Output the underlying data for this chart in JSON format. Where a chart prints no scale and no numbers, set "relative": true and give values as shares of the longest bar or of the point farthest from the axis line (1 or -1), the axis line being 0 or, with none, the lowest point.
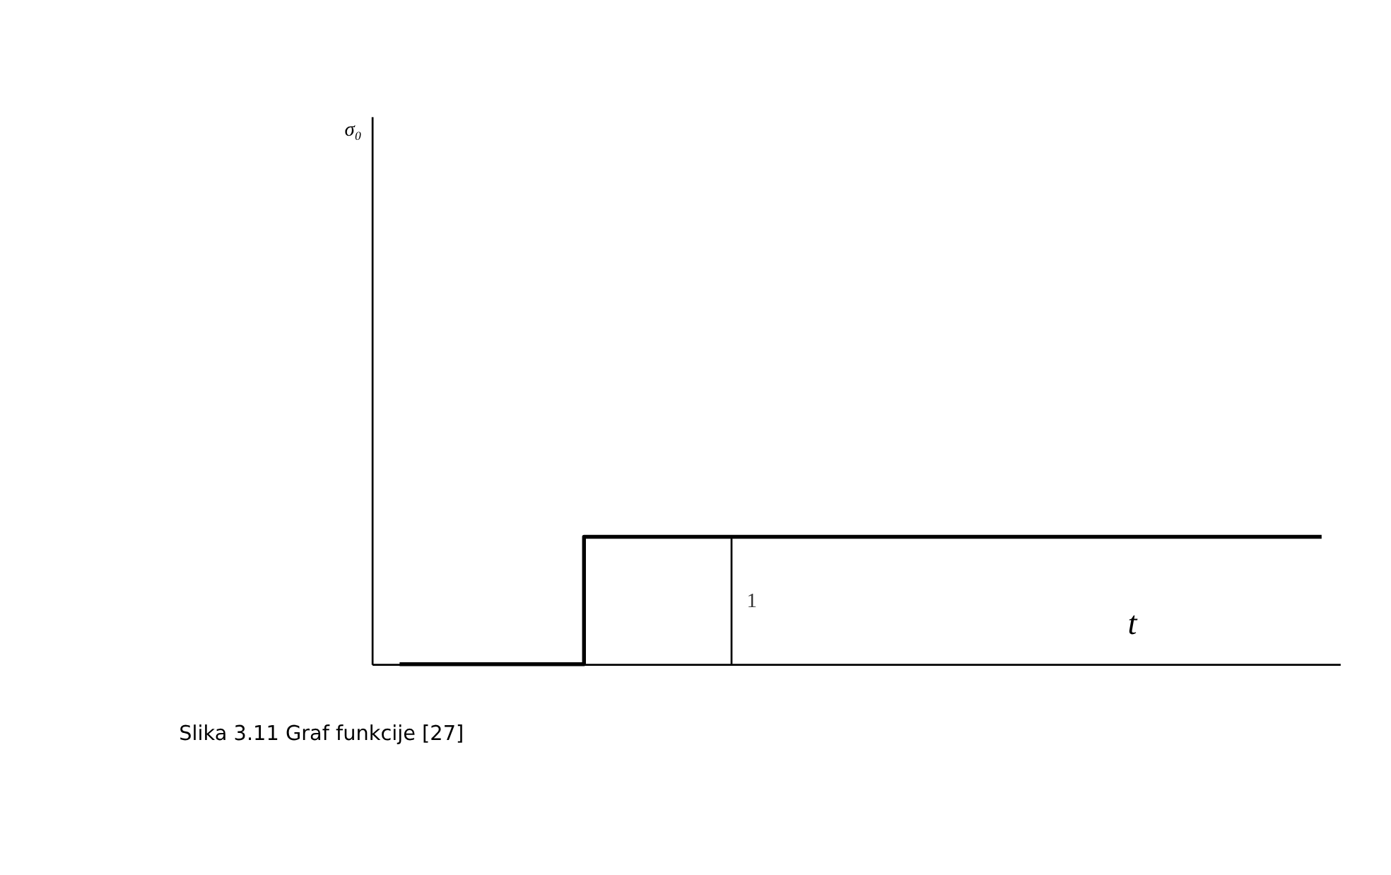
{
  "chart_data": {
    "type": "step",
    "relative": true,
    "categories": [
      null,
      null,
      null,
      null,
      null,
      null
    ],
    "series": [
      {
        "color": "#000000",
        "values": [
          0,
          1,
          1,
          1,
          1,
          1
        ]
      }
    ],
    "xlabel": "t",
    "annotations": [
      "1",
      "σ₀",
      "Slika 3.11 Graf funkcije [27]"
    ],
    "grid": false,
    "legend": false,
    "tick_labels": false,
    "marker": "none",
    "line_style": "solid"
  }
}
